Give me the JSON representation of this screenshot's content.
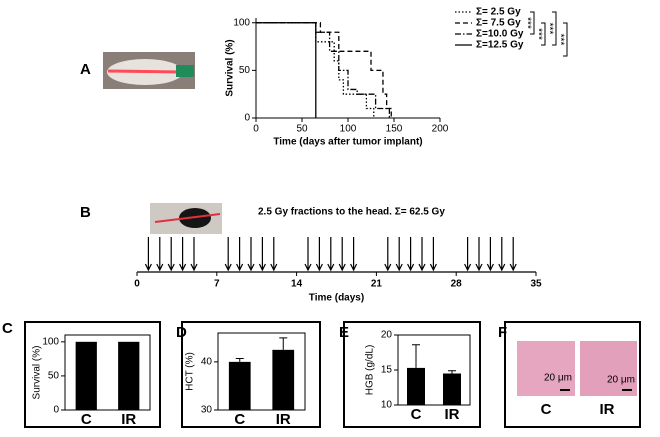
{
  "panel_labels": [
    "A",
    "B",
    "C",
    "D",
    "E",
    "F"
  ],
  "chart_data": [
    {
      "type": "step",
      "y_label": "Survival (%)",
      "x_label": "Time (days after tumor implant)",
      "xlim": [
        0,
        200
      ],
      "xticks": [
        0,
        50,
        100,
        150,
        200
      ],
      "ylim": [
        0,
        105
      ],
      "yticks": [
        0,
        50,
        100
      ],
      "legend": "right",
      "significance": [
        "***",
        "***",
        "***",
        "***"
      ],
      "series": [
        {
          "name": "Σ= 2.5 Gy",
          "color": "#000000",
          "line_style": "dotted",
          "x": [
            0,
            65,
            85,
            90,
            95,
            120,
            128
          ],
          "values": [
            100,
            80,
            60,
            40,
            25,
            10,
            0
          ]
        },
        {
          "name": "Σ= 7.5 Gy",
          "color": "#000000",
          "line_style": "dashed",
          "x": [
            0,
            70,
            90,
            125,
            138,
            142,
            147
          ],
          "values": [
            100,
            90,
            70,
            50,
            25,
            10,
            0
          ]
        },
        {
          "name": "Σ=10.0 Gy",
          "color": "#000000",
          "line_style": "dashdot",
          "x": [
            0,
            65,
            80,
            90,
            100,
            110,
            130,
            145
          ],
          "values": [
            100,
            90,
            70,
            50,
            30,
            25,
            10,
            0
          ]
        },
        {
          "name": "Σ=12.5 Gy",
          "color": "#000000",
          "line_style": "solid",
          "x": [
            0,
            65
          ],
          "values": [
            100,
            0
          ]
        }
      ]
    },
    {
      "type": "timeline",
      "annotation": "2.5 Gy fractions to the head. Σ= 62.5 Gy",
      "x_label": "Time (days)",
      "xlim": [
        0,
        35
      ],
      "xticks": [
        0,
        7,
        14,
        21,
        28,
        35
      ],
      "arrow_days": [
        1,
        2,
        3,
        4,
        5,
        8,
        9,
        10,
        11,
        12,
        15,
        16,
        17,
        18,
        19,
        22,
        23,
        24,
        25,
        26,
        29,
        30,
        31,
        32,
        33
      ]
    },
    {
      "type": "bar",
      "y_label": "Survival (%)",
      "categories": [
        "C",
        "IR"
      ],
      "values": [
        100,
        100
      ],
      "color": "#000000",
      "ylim": [
        0,
        110
      ],
      "yticks": [
        0,
        50,
        100
      ]
    },
    {
      "type": "bar",
      "y_label": "HCT (%)",
      "categories": [
        "C",
        "IR"
      ],
      "values": [
        40,
        42.5
      ],
      "errors": [
        0.7,
        2.5
      ],
      "color": "#000000",
      "ylim": [
        30,
        46
      ],
      "yticks": [
        30,
        40
      ]
    },
    {
      "type": "bar",
      "y_label": "HGB (g/dL)",
      "categories": [
        "C",
        "IR"
      ],
      "values": [
        15.3,
        14.5
      ],
      "errors": [
        3.3,
        0.4
      ],
      "color": "#000000",
      "ylim": [
        10,
        20
      ],
      "yticks": [
        10,
        15,
        20
      ]
    }
  ],
  "histology": {
    "labels": [
      "C",
      "IR"
    ],
    "scale_bar": "20 μm"
  }
}
